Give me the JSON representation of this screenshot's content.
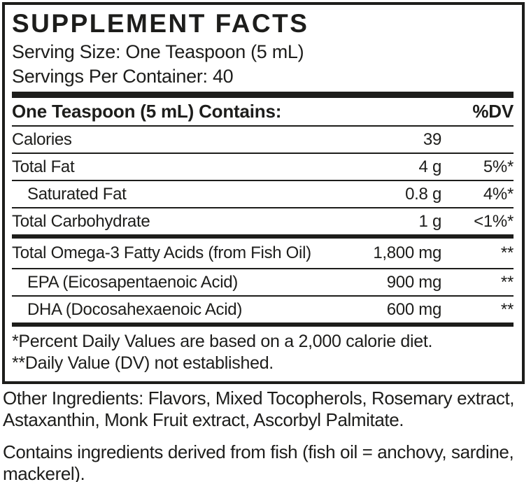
{
  "colors": {
    "ink": "#1d1d1b",
    "background": "#ffffff"
  },
  "panel": {
    "title": "SUPPLEMENT FACTS",
    "serving_size": "Serving Size: One Teaspoon (5 mL)",
    "servings_per_container": "Servings Per Container: 40",
    "header": {
      "contains_label": "One Teaspoon (5 mL) Contains:",
      "dv_label": "%DV"
    },
    "rows": [
      {
        "label": "Calories",
        "amount": "39",
        "dv": ""
      },
      {
        "label": "Total Fat",
        "amount": "4 g",
        "dv": "5%*"
      },
      {
        "label": "Saturated Fat",
        "amount": "0.8 g",
        "dv": "4%*"
      },
      {
        "label": "Total Carbohydrate",
        "amount": "1 g",
        "dv": "<1%*"
      },
      {
        "label": "Total Omega-3 Fatty Acids (from Fish Oil)",
        "amount": "1,800 mg",
        "dv": "**"
      },
      {
        "label": "EPA (Eicosapentaenoic Acid)",
        "amount": "900 mg",
        "dv": "**"
      },
      {
        "label": "DHA (Docosahexaenoic Acid)",
        "amount": "600 mg",
        "dv": "**"
      }
    ],
    "footnotes": [
      "*Percent Daily Values are based on a 2,000 calorie diet.",
      "**Daily Value (DV) not established."
    ]
  },
  "other_ingredients": {
    "lines": [
      "Other Ingredients: Flavors, Mixed Tocopherols, Rosemary extract,",
      "Astaxanthin, Monk Fruit extract, Ascorbyl Palmitate."
    ]
  },
  "allergen_statement": {
    "lines": [
      "Contains ingredients derived from fish (fish oil = anchovy, sardine,",
      "mackerel)."
    ]
  }
}
